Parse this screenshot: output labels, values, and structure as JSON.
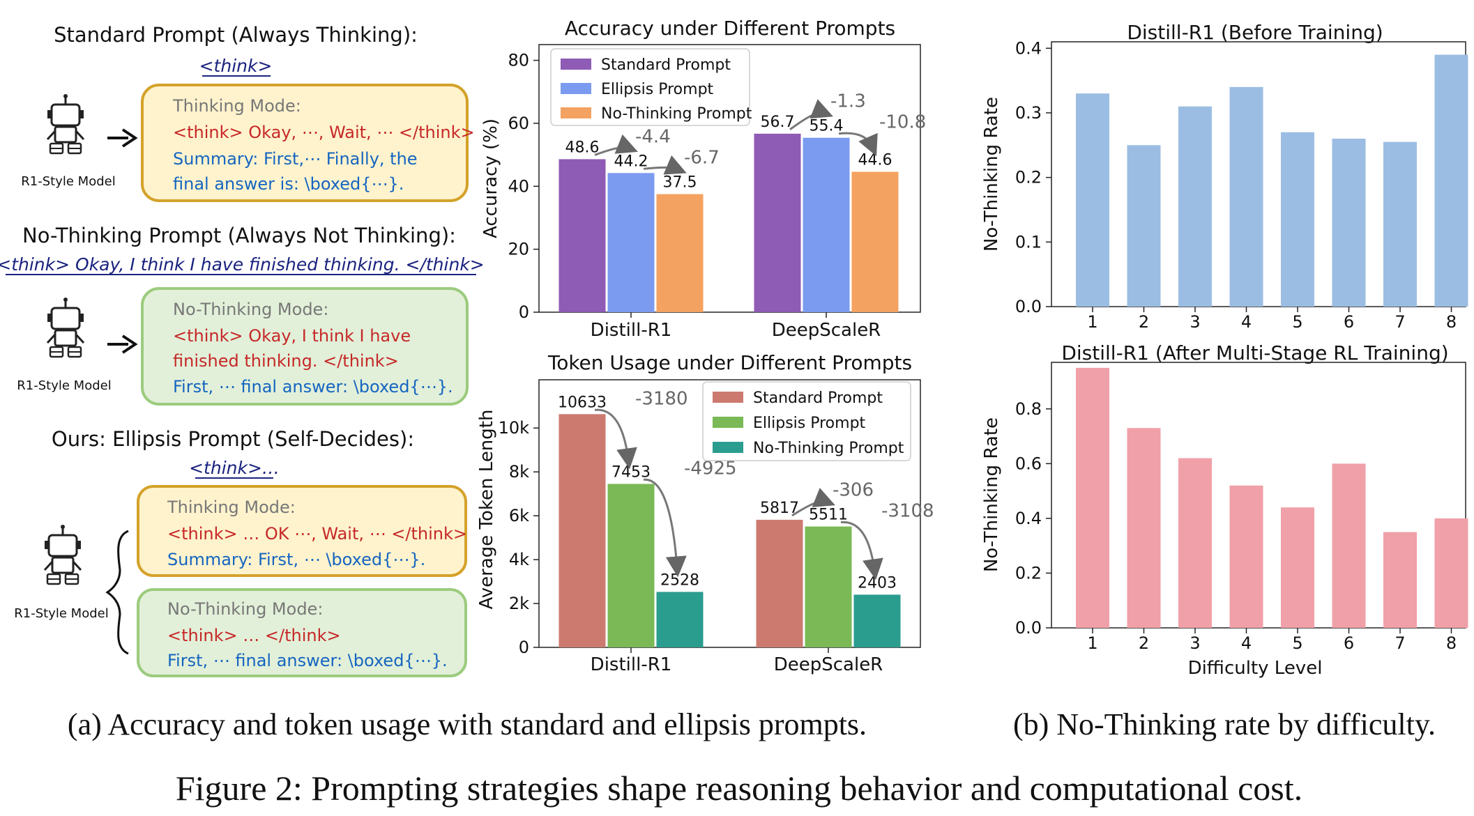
{
  "left_panel": {
    "standard": {
      "heading": "Standard Prompt (Always Thinking):",
      "tag": "<think>",
      "robot_label": "R1-Style Model",
      "box_title": "Thinking Mode:",
      "line1": "<think> Okay, ⋯, Wait, ⋯ </think>",
      "line2": "Summary: First,⋯  Finally, the",
      "line3": "final answer is: \\boxed{⋯}."
    },
    "nothink": {
      "heading": "No-Thinking Prompt (Always Not Thinking):",
      "tag": "<think> Okay, I think I have finished thinking. </think>",
      "robot_label": "R1-Style Model",
      "box_title": "No-Thinking Mode:",
      "line1": "<think> Okay, I think I have",
      "line2": "finished thinking. </think>",
      "line3": "First, ⋯ final answer: \\boxed{⋯}."
    },
    "ours": {
      "heading": "Ours: Ellipsis Prompt (Self-Decides):",
      "tag": "<think>…",
      "robot_label": "R1-Style Model",
      "box1_title": "Thinking Mode:",
      "box1_line1": "<think> … OK ⋯, Wait, ⋯ </think>",
      "box1_line2": "Summary: First, ⋯ \\boxed{⋯}.",
      "box2_title": "No-Thinking Mode:",
      "box2_line1": "<think> … </think>",
      "box2_line2": "First, ⋯ final answer: \\boxed{⋯}."
    }
  },
  "colors": {
    "standard_acc": "#8e5bb5",
    "ellipsis_acc": "#7b9bf0",
    "nothink_acc": "#f4a261",
    "standard_tok": "#cc7a70",
    "ellipsis_tok": "#7ab955",
    "nothink_tok": "#2a9d8f",
    "before_bar": "#9cbde3",
    "after_bar": "#f0a0a8",
    "think_box_fill": "#fff3cd",
    "think_box_stroke": "#d4a22a",
    "nothink_box_fill": "#e2f0d9",
    "nothink_box_stroke": "#9ccb7e"
  },
  "chart_data": [
    {
      "id": "accuracy",
      "type": "bar",
      "title": "Accuracy under Different Prompts",
      "xlabel": "",
      "ylabel": "Accuracy (%)",
      "categories": [
        "Distill-R1",
        "DeepScaleR"
      ],
      "ylim": [
        0,
        85
      ],
      "yticks": [
        "0",
        "20",
        "40",
        "60",
        "80"
      ],
      "legend_position": "top-left",
      "series": [
        {
          "name": "Standard Prompt",
          "values": [
            48.6,
            56.7
          ],
          "labels": [
            "48.6",
            "56.7"
          ]
        },
        {
          "name": "Ellipsis Prompt",
          "values": [
            44.2,
            55.4
          ],
          "labels": [
            "44.2",
            "55.4"
          ]
        },
        {
          "name": "No-Thinking Prompt",
          "values": [
            37.5,
            44.6
          ],
          "labels": [
            "37.5",
            "44.6"
          ]
        }
      ],
      "annotations": [
        {
          "category": "Distill-R1",
          "series": "Ellipsis Prompt",
          "text": "-4.4"
        },
        {
          "category": "Distill-R1",
          "series": "No-Thinking Prompt",
          "text": "-6.7"
        },
        {
          "category": "DeepScaleR",
          "series": "Ellipsis Prompt",
          "text": "-1.3"
        },
        {
          "category": "DeepScaleR",
          "series": "No-Thinking Prompt",
          "text": "-10.8"
        }
      ]
    },
    {
      "id": "tokens",
      "type": "bar",
      "title": "Token Usage under Different Prompts",
      "xlabel": "",
      "ylabel": "Average Token Length",
      "categories": [
        "Distill-R1",
        "DeepScaleR"
      ],
      "ylim": [
        0,
        12200
      ],
      "yticks": [
        "0",
        "2k",
        "4k",
        "6k",
        "8k",
        "10k"
      ],
      "legend_position": "top-right",
      "series": [
        {
          "name": "Standard Prompt",
          "values": [
            10633,
            5817
          ],
          "labels": [
            "10633",
            "5817"
          ]
        },
        {
          "name": "Ellipsis Prompt",
          "values": [
            7453,
            5511
          ],
          "labels": [
            "7453",
            "5511"
          ]
        },
        {
          "name": "No-Thinking Prompt",
          "values": [
            2528,
            2403
          ],
          "labels": [
            "2528",
            "2403"
          ]
        }
      ],
      "annotations": [
        {
          "category": "Distill-R1",
          "series": "Ellipsis Prompt",
          "text": "-3180"
        },
        {
          "category": "Distill-R1",
          "series": "No-Thinking Prompt",
          "text": "-4925"
        },
        {
          "category": "DeepScaleR",
          "series": "Ellipsis Prompt",
          "text": "-306"
        },
        {
          "category": "DeepScaleR",
          "series": "No-Thinking Prompt",
          "text": "-3108"
        }
      ]
    },
    {
      "id": "before",
      "type": "bar",
      "title": "Distill-R1 (Before Training)",
      "xlabel": "",
      "ylabel": "No-Thinking Rate",
      "categories": [
        "1",
        "2",
        "3",
        "4",
        "5",
        "6",
        "7",
        "8"
      ],
      "values": [
        0.33,
        0.25,
        0.31,
        0.34,
        0.27,
        0.26,
        0.255,
        0.39
      ],
      "ylim": [
        0,
        0.41
      ],
      "yticks": [
        "0.0",
        "0.1",
        "0.2",
        "0.3",
        "0.4"
      ]
    },
    {
      "id": "after",
      "type": "bar",
      "title": "Distill-R1 (After Multi-Stage RL Training)",
      "xlabel": "Difficulty Level",
      "ylabel": "No-Thinking Rate",
      "categories": [
        "1",
        "2",
        "3",
        "4",
        "5",
        "6",
        "7",
        "8"
      ],
      "values": [
        0.95,
        0.73,
        0.62,
        0.52,
        0.44,
        0.6,
        0.35,
        0.4
      ],
      "ylim": [
        0,
        0.97
      ],
      "yticks": [
        "0.0",
        "0.2",
        "0.4",
        "0.6",
        "0.8"
      ]
    }
  ],
  "captions": {
    "a": "(a) Accuracy and token usage with standard and ellipsis prompts.",
    "b": "(b) No-Thinking rate by difficulty.",
    "figure": "Figure 2: Prompting strategies shape reasoning behavior and computational cost."
  }
}
